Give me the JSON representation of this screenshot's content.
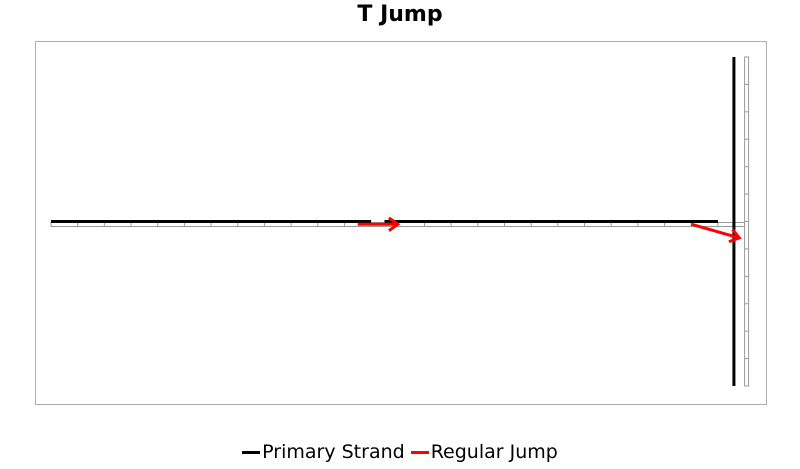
{
  "chart_data": {
    "type": "line",
    "title": "T Jump",
    "xlabel": "",
    "ylabel": "",
    "xlim": [
      0,
      26
    ],
    "ylim": [
      -6,
      6
    ],
    "grid": false,
    "legend_position": "bottom",
    "series": [
      {
        "name": "Primary Strand",
        "color": "#000000",
        "segments": [
          [
            [
              0,
              0
            ],
            [
              12,
              0
            ]
          ],
          [
            [
              12.5,
              0
            ],
            [
              25,
              0
            ]
          ],
          [
            [
              25.6,
              6
            ],
            [
              25.6,
              -6
            ]
          ]
        ]
      },
      {
        "name": "Regular Jump",
        "color": "#ff0000",
        "segments": [
          [
            [
              11.5,
              -0.1
            ],
            [
              13,
              -0.1
            ]
          ],
          [
            [
              24.0,
              -0.1
            ],
            [
              25.8,
              -0.6
            ]
          ]
        ]
      }
    ]
  }
}
